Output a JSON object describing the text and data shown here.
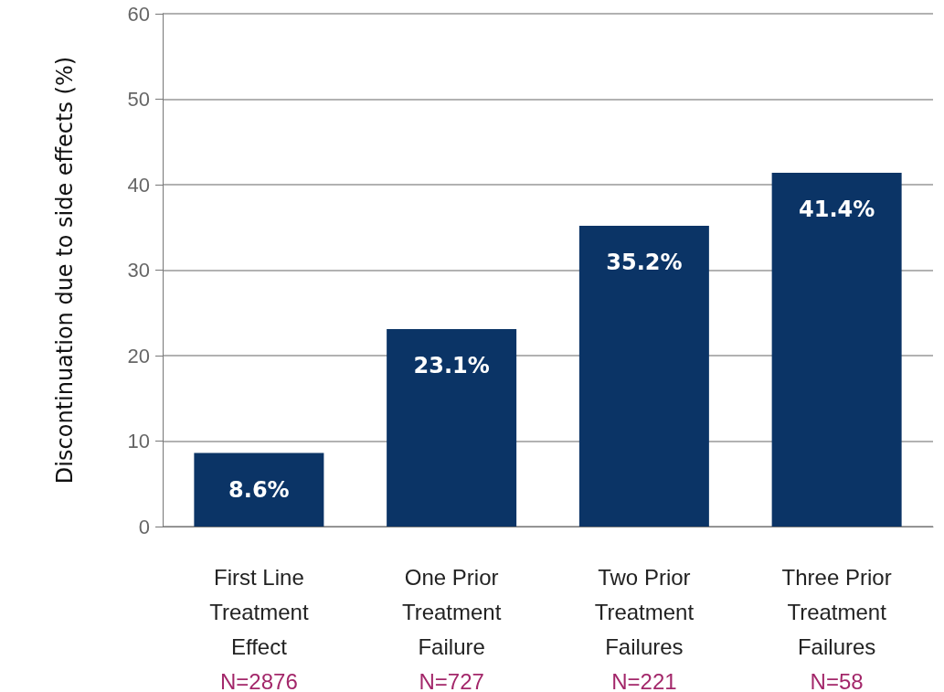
{
  "chart_data": {
    "type": "bar",
    "categories": [
      "First Line\nTreatment\nEffect\nN=2876",
      "One Prior\nTreatment\nFailure\nN=727",
      "Two Prior\nTreatment\nFailures\nN=221",
      "Three Prior\nTreatment\nFailures\nN=58"
    ],
    "values": [
      8.6,
      23.1,
      35.2,
      41.4
    ],
    "value_labels": [
      "8.6%",
      "23.1%",
      "35.2%",
      "41.4%"
    ],
    "color": "#0b3466",
    "ylabel": "Discontinuation due to side effects (%)",
    "ylim": [
      0,
      60
    ],
    "yticks": [
      0,
      10,
      20,
      30,
      40,
      50,
      60
    ],
    "grid": "y"
  }
}
